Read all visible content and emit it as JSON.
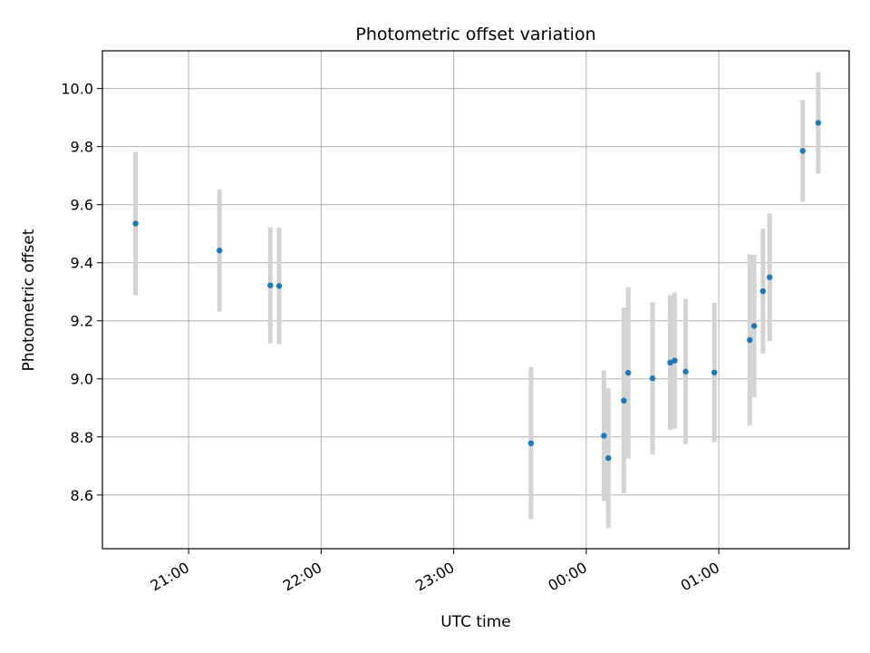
{
  "chart_data": {
    "type": "scatter",
    "title": "Photometric offset variation",
    "xlabel": "UTC time",
    "ylabel": "Photometric offset",
    "x_ticks": [
      "21:00",
      "22:00",
      "23:00",
      "00:00",
      "01:00"
    ],
    "y_ticks": [
      "8.6",
      "8.8",
      "9.0",
      "9.2",
      "9.4",
      "9.6",
      "9.8",
      "10.0"
    ],
    "xlim": [
      "20:21",
      "01:59"
    ],
    "ylim": [
      8.415,
      10.13
    ],
    "grid": true,
    "marker_color": "#1f77b4",
    "errorbar_color": "#d3d3d3",
    "points": [
      {
        "time": "20:36",
        "y": 9.535,
        "err": 0.247
      },
      {
        "time": "21:14",
        "y": 9.442,
        "err": 0.21
      },
      {
        "time": "21:37",
        "y": 9.322,
        "err": 0.2
      },
      {
        "time": "21:41",
        "y": 9.32,
        "err": 0.2
      },
      {
        "time": "23:35",
        "y": 8.778,
        "err": 0.262
      },
      {
        "time": "00:08",
        "y": 8.804,
        "err": 0.225
      },
      {
        "time": "00:10",
        "y": 8.727,
        "err": 0.24
      },
      {
        "time": "00:17",
        "y": 8.925,
        "err": 0.32
      },
      {
        "time": "00:19",
        "y": 9.021,
        "err": 0.295
      },
      {
        "time": "00:30",
        "y": 9.002,
        "err": 0.262
      },
      {
        "time": "00:38",
        "y": 9.056,
        "err": 0.232
      },
      {
        "time": "00:40",
        "y": 9.063,
        "err": 0.235
      },
      {
        "time": "00:45",
        "y": 9.025,
        "err": 0.25
      },
      {
        "time": "00:58",
        "y": 9.022,
        "err": 0.24
      },
      {
        "time": "01:14",
        "y": 9.134,
        "err": 0.295
      },
      {
        "time": "01:16",
        "y": 9.182,
        "err": 0.245
      },
      {
        "time": "01:20",
        "y": 9.302,
        "err": 0.215
      },
      {
        "time": "01:23",
        "y": 9.35,
        "err": 0.22
      },
      {
        "time": "01:38",
        "y": 9.785,
        "err": 0.175
      },
      {
        "time": "01:45",
        "y": 9.882,
        "err": 0.175
      }
    ]
  }
}
